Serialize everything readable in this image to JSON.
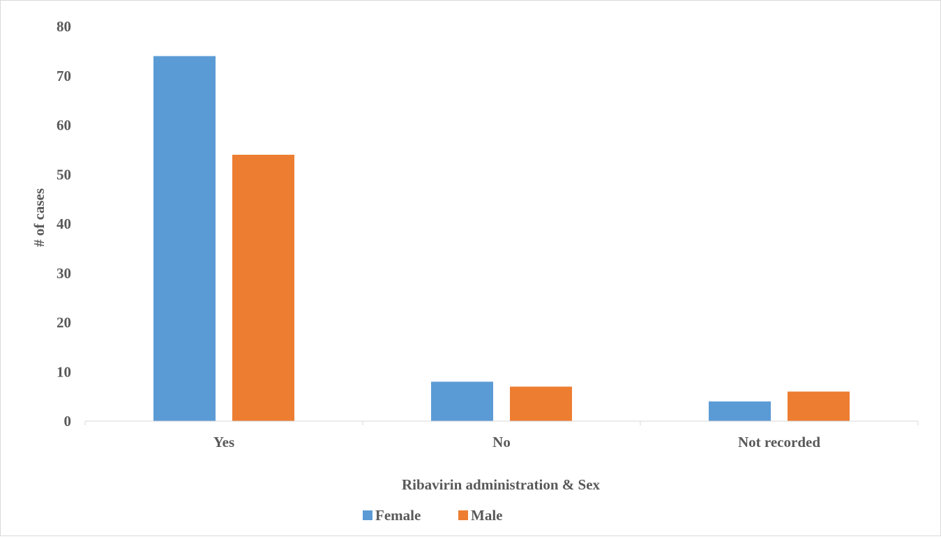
{
  "chart_data": {
    "type": "bar",
    "title": "",
    "xlabel": "Ribavirin administration & Sex",
    "ylabel": "# of cases",
    "categories": [
      "Yes",
      "No",
      "Not recorded"
    ],
    "series": [
      {
        "name": "Female",
        "values": [
          74,
          8,
          4
        ],
        "color": "#5b9bd5"
      },
      {
        "name": "Male",
        "values": [
          54,
          7,
          6
        ],
        "color": "#ed7d31"
      }
    ],
    "ylim": [
      0,
      80
    ],
    "yticks": [
      "0",
      "10",
      "20",
      "30",
      "40",
      "50",
      "60",
      "70",
      "80"
    ],
    "grid": false,
    "legend_position": "bottom-center"
  }
}
